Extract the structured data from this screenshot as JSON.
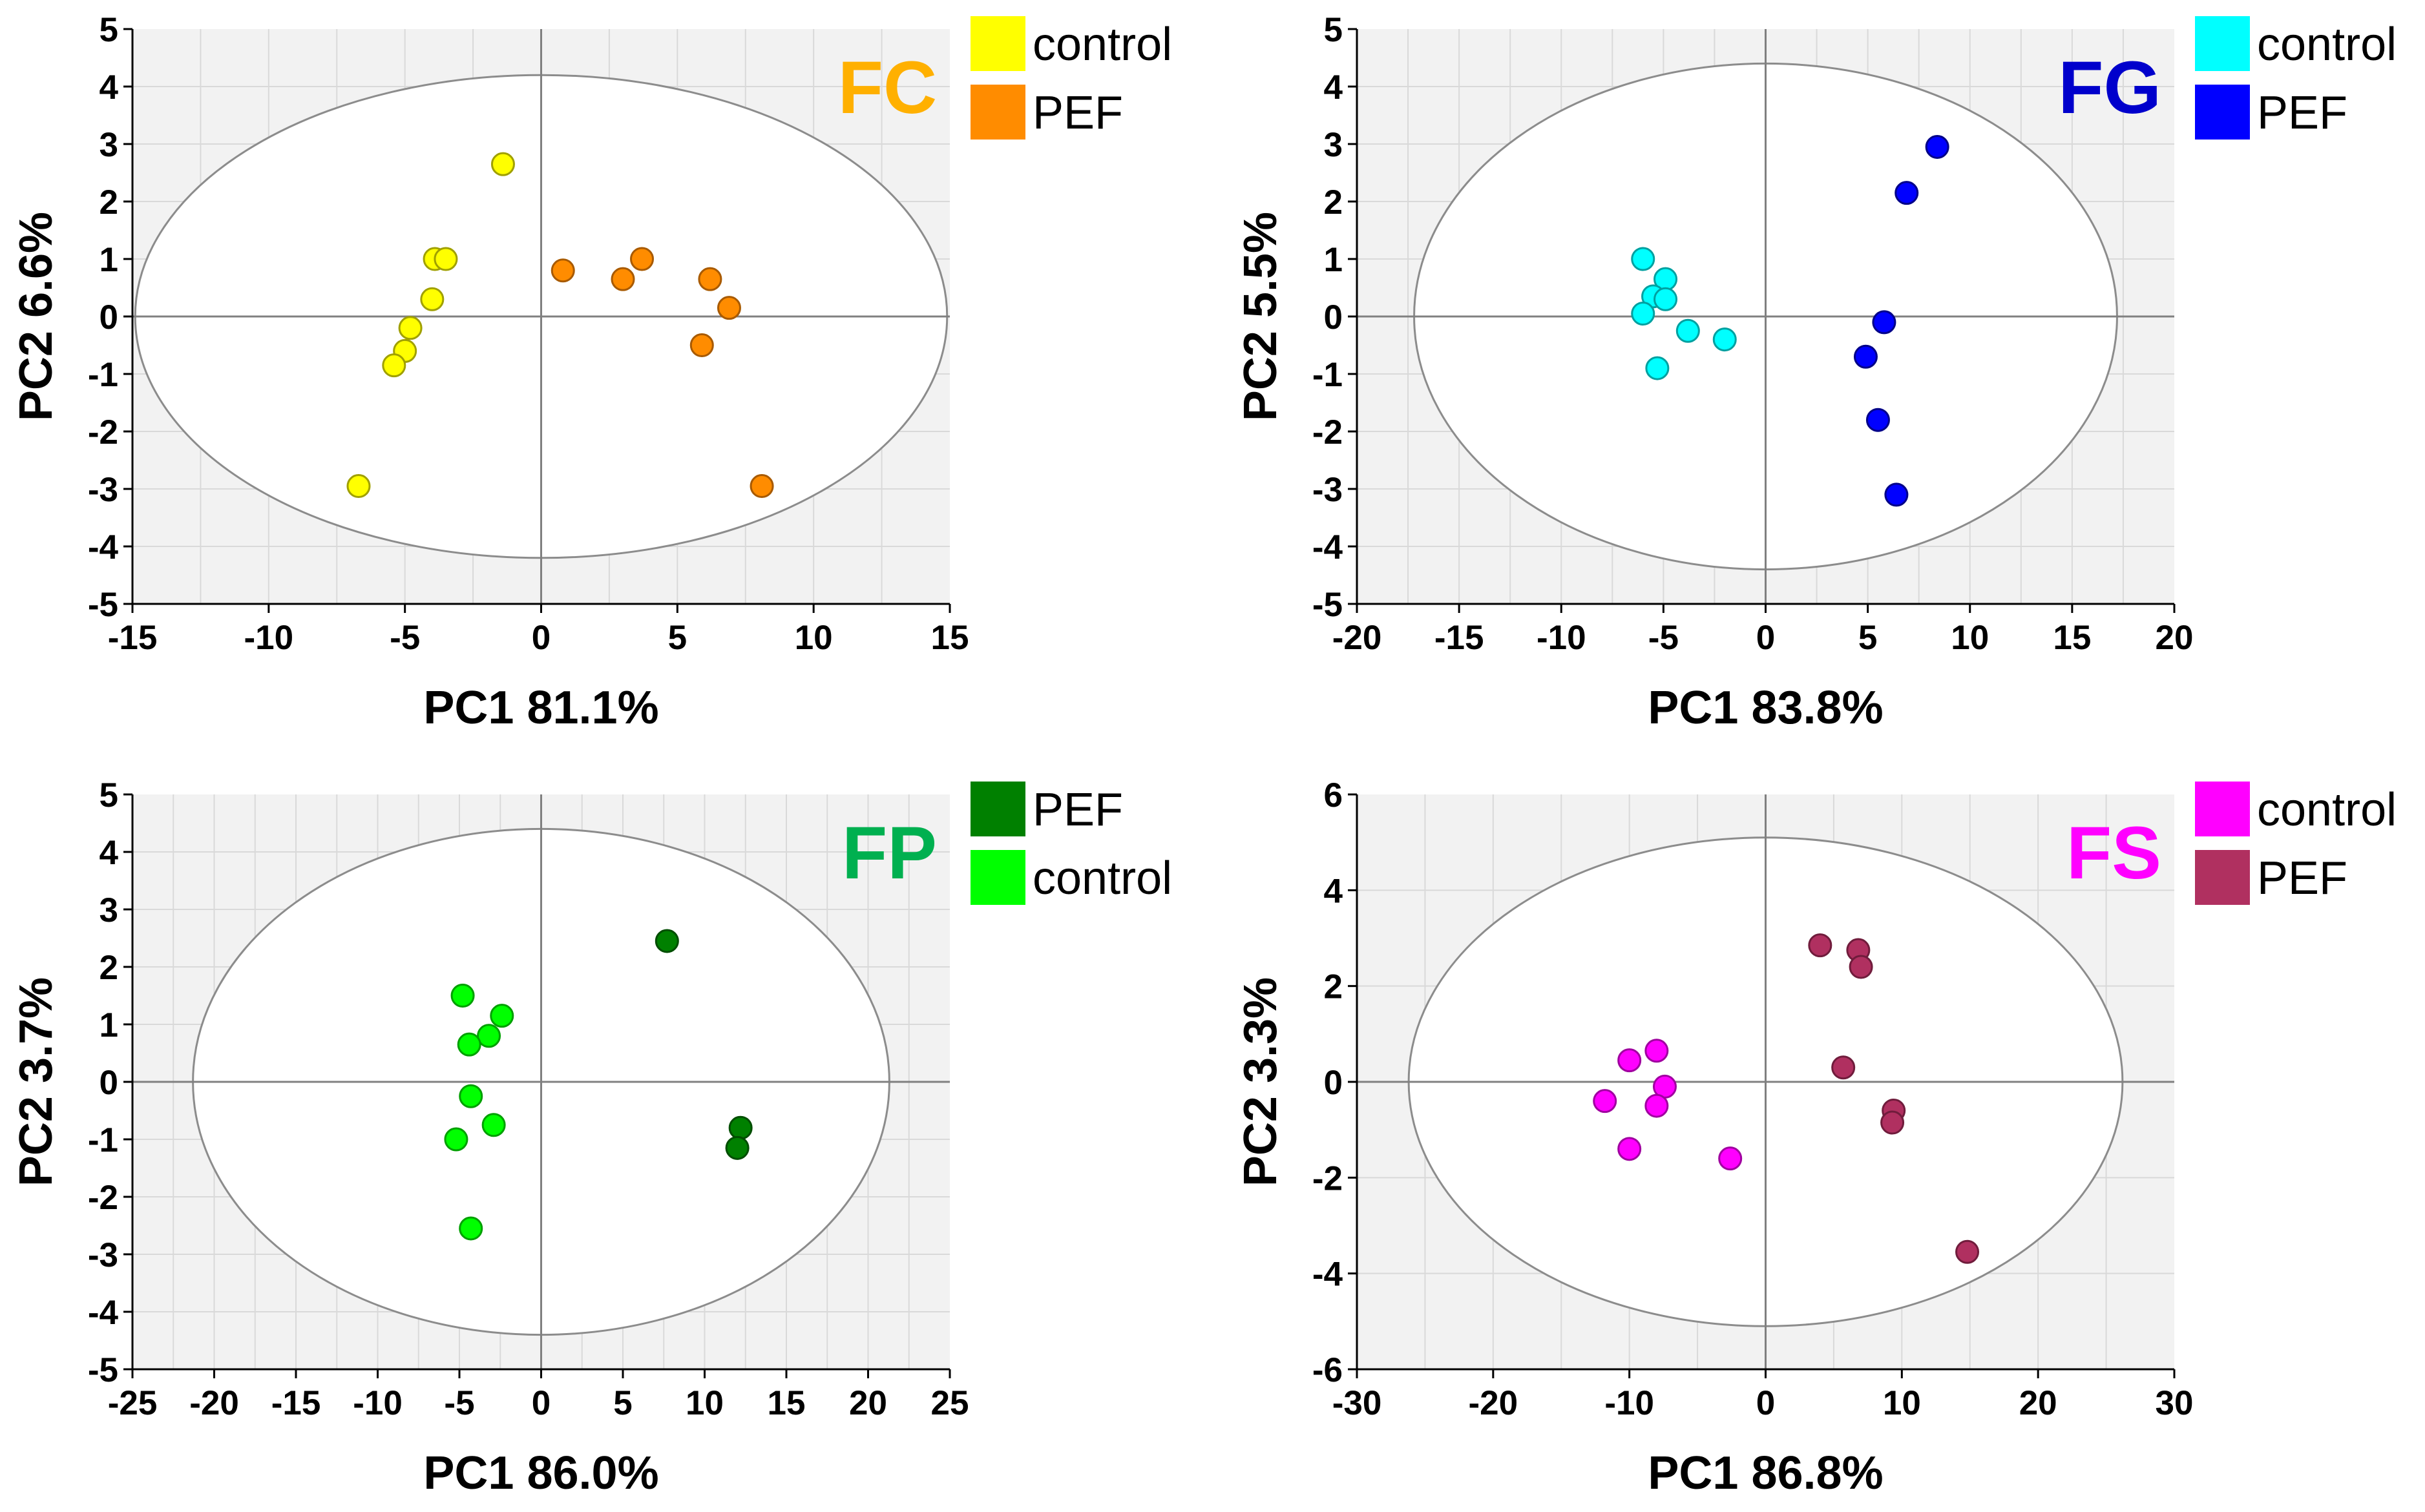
{
  "chart_data": [
    {
      "type": "scatter",
      "title": "FC",
      "title_color": "#ffb000",
      "xlabel": "PC1 81.1%",
      "ylabel": "PC2 6.6%",
      "xlim": [
        -15,
        15
      ],
      "ylim": [
        -5,
        5
      ],
      "xticks": [
        -15,
        -10,
        -5,
        0,
        5,
        10,
        15
      ],
      "yticks": [
        -5,
        -4,
        -3,
        -2,
        -1,
        0,
        1,
        2,
        3,
        4,
        5
      ],
      "ellipse": {
        "rx": 14.9,
        "ry": 4.2
      },
      "legend": [
        {
          "label": "control",
          "color": "#ffff00"
        },
        {
          "label": "PEF",
          "color": "#ff8c00"
        }
      ],
      "series": [
        {
          "name": "control",
          "color": "#ffff00",
          "edge": "#a0a000",
          "points": [
            [
              -1.4,
              2.65
            ],
            [
              -3.9,
              1.0
            ],
            [
              -3.5,
              1.0
            ],
            [
              -4.0,
              0.3
            ],
            [
              -4.8,
              -0.2
            ],
            [
              -5.0,
              -0.6
            ],
            [
              -5.4,
              -0.85
            ],
            [
              -6.7,
              -2.95
            ]
          ]
        },
        {
          "name": "PEF",
          "color": "#ff8c00",
          "edge": "#a85a00",
          "points": [
            [
              0.8,
              0.8
            ],
            [
              3.0,
              0.65
            ],
            [
              3.7,
              1.0
            ],
            [
              6.2,
              0.65
            ],
            [
              6.9,
              0.15
            ],
            [
              5.9,
              -0.5
            ],
            [
              8.1,
              -2.95
            ]
          ]
        }
      ]
    },
    {
      "type": "scatter",
      "title": "FG",
      "title_color": "#0000cc",
      "xlabel": "PC1 83.8%",
      "ylabel": "PC2 5.5%",
      "xlim": [
        -20,
        20
      ],
      "ylim": [
        -5,
        5
      ],
      "xticks": [
        -20,
        -15,
        -10,
        -5,
        0,
        5,
        10,
        15,
        20
      ],
      "yticks": [
        -5,
        -4,
        -3,
        -2,
        -1,
        0,
        1,
        2,
        3,
        4,
        5
      ],
      "ellipse": {
        "rx": 17.2,
        "ry": 4.4
      },
      "legend": [
        {
          "label": "control",
          "color": "#00ffff"
        },
        {
          "label": "PEF",
          "color": "#0000ff"
        }
      ],
      "series": [
        {
          "name": "control",
          "color": "#00ffff",
          "edge": "#00a0a0",
          "points": [
            [
              -6.0,
              1.0
            ],
            [
              -4.9,
              0.65
            ],
            [
              -5.5,
              0.35
            ],
            [
              -4.9,
              0.3
            ],
            [
              -6.0,
              0.05
            ],
            [
              -3.8,
              -0.25
            ],
            [
              -2.0,
              -0.4
            ],
            [
              -5.3,
              -0.9
            ]
          ]
        },
        {
          "name": "PEF",
          "color": "#0000ff",
          "edge": "#000088",
          "points": [
            [
              8.4,
              2.95
            ],
            [
              6.9,
              2.15
            ],
            [
              5.8,
              -0.1
            ],
            [
              4.9,
              -0.7
            ],
            [
              5.5,
              -1.8
            ],
            [
              6.4,
              -3.1
            ]
          ]
        }
      ]
    },
    {
      "type": "scatter",
      "title": "FP",
      "title_color": "#00b050",
      "xlabel": "PC1 86.0%",
      "ylabel": "PC2 3.7%",
      "xlim": [
        -25,
        25
      ],
      "ylim": [
        -5,
        5
      ],
      "xticks": [
        -25,
        -20,
        -15,
        -10,
        -5,
        0,
        5,
        10,
        15,
        20,
        25
      ],
      "yticks": [
        -5,
        -4,
        -3,
        -2,
        -1,
        0,
        1,
        2,
        3,
        4,
        5
      ],
      "ellipse": {
        "rx": 21.3,
        "ry": 4.4
      },
      "legend": [
        {
          "label": "PEF",
          "color": "#008000"
        },
        {
          "label": "control",
          "color": "#00ff00"
        }
      ],
      "series": [
        {
          "name": "PEF",
          "color": "#008000",
          "edge": "#004d00",
          "points": [
            [
              7.7,
              2.45
            ],
            [
              12.2,
              -0.8
            ],
            [
              12.0,
              -1.15
            ]
          ]
        },
        {
          "name": "control",
          "color": "#00ff00",
          "edge": "#00a000",
          "points": [
            [
              -4.8,
              1.5
            ],
            [
              -2.4,
              1.15
            ],
            [
              -3.2,
              0.8
            ],
            [
              -4.4,
              0.65
            ],
            [
              -4.3,
              -0.25
            ],
            [
              -2.9,
              -0.75
            ],
            [
              -5.2,
              -1.0
            ],
            [
              -4.3,
              -2.55
            ]
          ]
        }
      ]
    },
    {
      "type": "scatter",
      "title": "FS",
      "title_color": "#ff00ff",
      "xlabel": "PC1 86.8%",
      "ylabel": "PC2 3.3%",
      "xlim": [
        -30,
        30
      ],
      "ylim": [
        -6,
        6
      ],
      "xticks": [
        -30,
        -20,
        -10,
        0,
        10,
        20,
        30
      ],
      "yticks": [
        -6,
        -4,
        -2,
        0,
        2,
        4,
        6
      ],
      "ellipse": {
        "rx": 26.2,
        "ry": 5.1
      },
      "legend": [
        {
          "label": "control",
          "color": "#ff00ff"
        },
        {
          "label": "PEF",
          "color": "#b03060"
        }
      ],
      "series": [
        {
          "name": "control",
          "color": "#ff00ff",
          "edge": "#a000a0",
          "points": [
            [
              -8.0,
              0.65
            ],
            [
              -10.0,
              0.45
            ],
            [
              -7.4,
              -0.1
            ],
            [
              -11.8,
              -0.4
            ],
            [
              -8.0,
              -0.5
            ],
            [
              -10.0,
              -1.4
            ],
            [
              -2.6,
              -1.6
            ]
          ]
        },
        {
          "name": "PEF",
          "color": "#b03060",
          "edge": "#701c3c",
          "points": [
            [
              4.0,
              2.85
            ],
            [
              6.8,
              2.75
            ],
            [
              7.0,
              2.4
            ],
            [
              5.7,
              0.3
            ],
            [
              9.4,
              -0.6
            ],
            [
              9.3,
              -0.85
            ],
            [
              14.8,
              -3.55
            ]
          ]
        }
      ]
    }
  ]
}
